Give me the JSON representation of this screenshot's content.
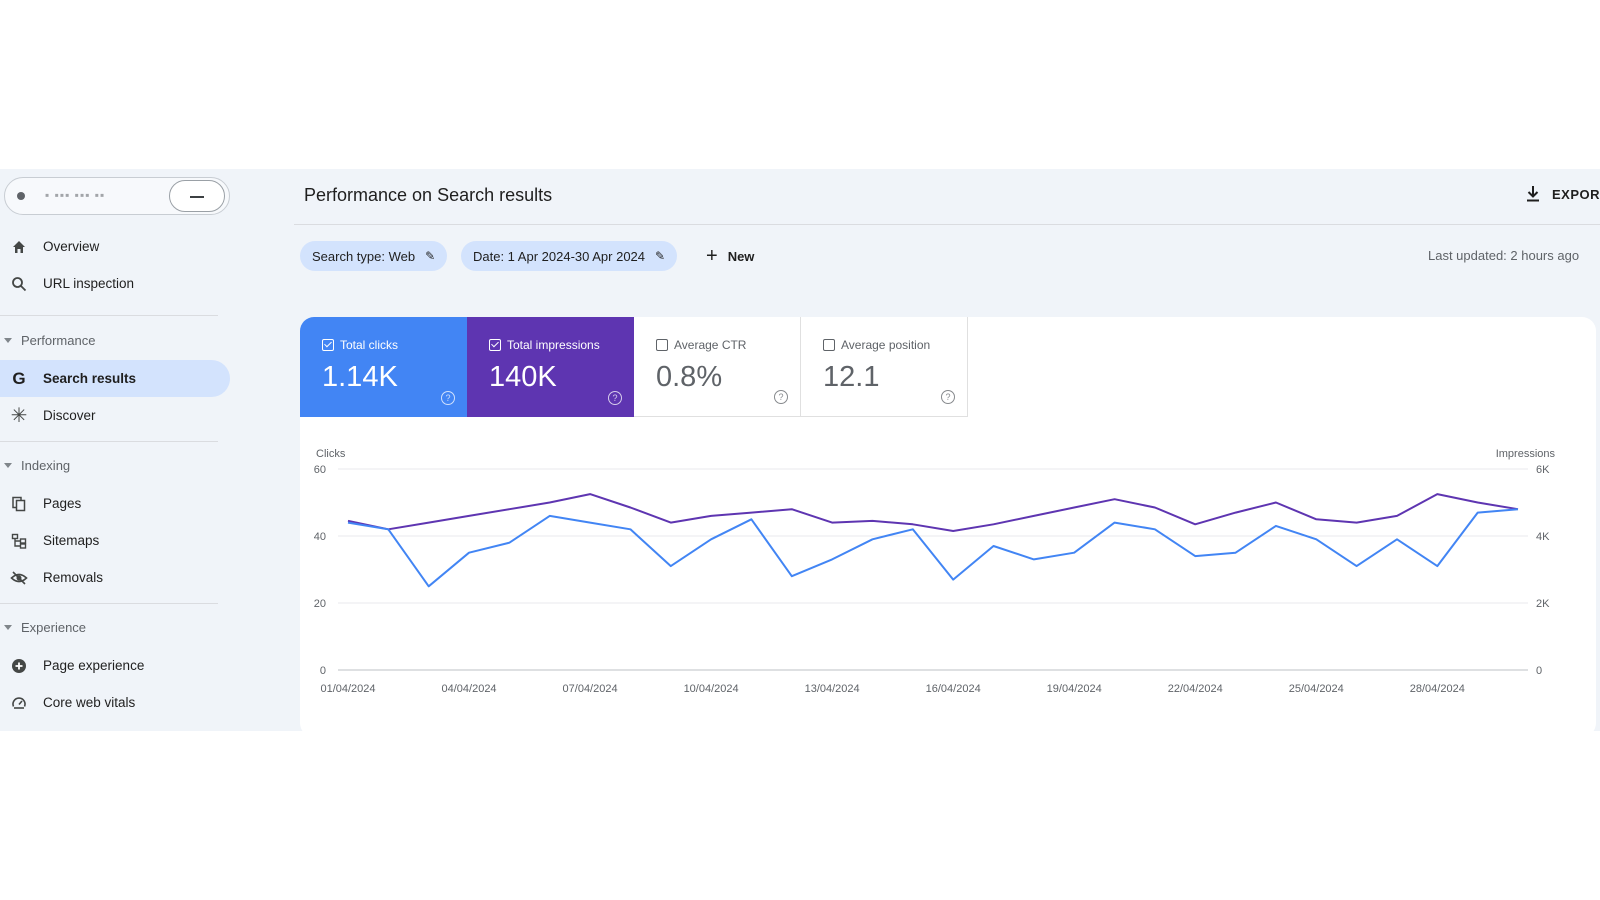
{
  "sidebar": {
    "items": [
      {
        "label": "Overview",
        "icon": "home-icon"
      },
      {
        "label": "URL inspection",
        "icon": "search-icon"
      },
      {
        "label": "Search results",
        "icon": "google-g-icon",
        "active": true
      },
      {
        "label": "Discover",
        "icon": "asterisk-icon"
      },
      {
        "label": "Pages",
        "icon": "pages-icon"
      },
      {
        "label": "Sitemaps",
        "icon": "sitemap-icon"
      },
      {
        "label": "Removals",
        "icon": "eye-off-icon"
      },
      {
        "label": "Page experience",
        "icon": "plus-circle-icon"
      },
      {
        "label": "Core web vitals",
        "icon": "gauge-icon"
      }
    ],
    "sections": [
      "Performance",
      "Indexing",
      "Experience"
    ]
  },
  "header": {
    "title": "Performance on Search results",
    "export_label": "EXPORT"
  },
  "filters": {
    "search_type": "Search type: Web",
    "date": "Date: 1 Apr 2024-30 Apr 2024",
    "new_label": "New",
    "last_updated": "Last updated: 2 hours ago"
  },
  "metrics": {
    "clicks": {
      "label": "Total clicks",
      "value": "1.14K",
      "checked": true
    },
    "impressions": {
      "label": "Total impressions",
      "value": "140K",
      "checked": true
    },
    "ctr": {
      "label": "Average CTR",
      "value": "0.8%",
      "checked": false
    },
    "position": {
      "label": "Average position",
      "value": "12.1",
      "checked": false
    }
  },
  "colors": {
    "clicks": "#4285f4",
    "impressions": "#5e35b1",
    "active_nav": "#d3e3fd"
  },
  "chart_data": {
    "type": "line",
    "ylabel_left": "Clicks",
    "ylabel_right": "Impressions",
    "ylim_left": [
      0,
      60
    ],
    "ylim_right": [
      0,
      6000
    ],
    "yticks_left": [
      "0",
      "20",
      "40",
      "60"
    ],
    "yticks_right": [
      "0",
      "2K",
      "4K",
      "6K"
    ],
    "xticks": [
      "01/04/2024",
      "04/04/2024",
      "07/04/2024",
      "10/04/2024",
      "13/04/2024",
      "16/04/2024",
      "19/04/2024",
      "22/04/2024",
      "25/04/2024",
      "28/04/2024"
    ],
    "x": [
      "01/04/2024",
      "02/04/2024",
      "03/04/2024",
      "04/04/2024",
      "05/04/2024",
      "06/04/2024",
      "07/04/2024",
      "08/04/2024",
      "09/04/2024",
      "10/04/2024",
      "11/04/2024",
      "12/04/2024",
      "13/04/2024",
      "14/04/2024",
      "15/04/2024",
      "16/04/2024",
      "17/04/2024",
      "18/04/2024",
      "19/04/2024",
      "20/04/2024",
      "21/04/2024",
      "22/04/2024",
      "23/04/2024",
      "24/04/2024",
      "25/04/2024",
      "26/04/2024",
      "27/04/2024",
      "28/04/2024",
      "29/04/2024",
      "30/04/2024"
    ],
    "grid": true,
    "series": [
      {
        "name": "Clicks",
        "axis": "left",
        "color": "#4285f4",
        "values": [
          44,
          42,
          25,
          35,
          38,
          46,
          44,
          42,
          31,
          39,
          45,
          28,
          33,
          39,
          42,
          27,
          37,
          33,
          35,
          44,
          42,
          34,
          35,
          43,
          39,
          31,
          39,
          31,
          47,
          48
        ]
      },
      {
        "name": "Impressions",
        "axis": "right",
        "color": "#5e35b1",
        "values": [
          4450,
          4200,
          4400,
          4600,
          4800,
          5000,
          5250,
          4850,
          4400,
          4600,
          4700,
          4800,
          4400,
          4450,
          4350,
          4150,
          4350,
          4600,
          4850,
          5100,
          4850,
          4350,
          4700,
          5000,
          4500,
          4400,
          4600,
          5250,
          5000,
          4800
        ]
      }
    ]
  }
}
